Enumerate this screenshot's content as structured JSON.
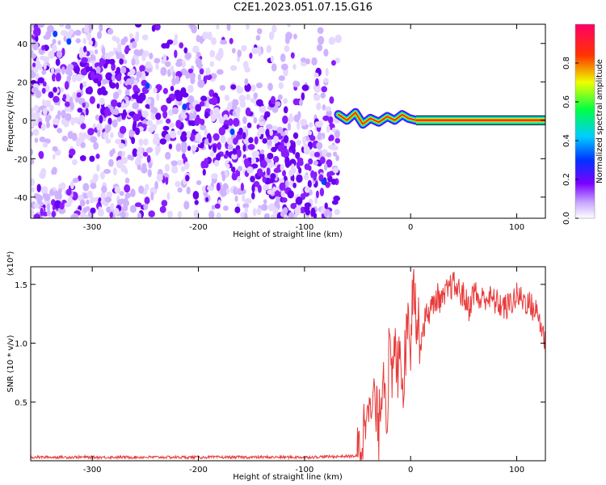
{
  "title": "C2E1.2023.051.07.15.G16",
  "chart_data": [
    {
      "type": "heatmap",
      "xlabel": "Height of straight line (km)",
      "ylabel": "Frequency (Hz)",
      "xlim": [
        -358,
        127
      ],
      "ylim": [
        -51,
        50
      ],
      "xticks": [
        -300,
        -200,
        -100,
        0,
        100
      ],
      "xtick_labels": [
        "-300",
        "-200",
        "-100",
        "0",
        "100"
      ],
      "yticks": [
        -40,
        -20,
        0,
        20,
        40
      ],
      "ytick_labels": [
        "-40",
        "-20",
        "0",
        "20",
        "40"
      ],
      "grid": false,
      "colorbar": {
        "label": "Normalized spectral amplitude",
        "range": [
          0,
          1
        ],
        "ticks": [
          0.0,
          0.2,
          0.4,
          0.6,
          0.8
        ],
        "tick_labels": [
          "0.0",
          "0.2",
          "0.4",
          "0.6",
          "0.8"
        ],
        "colormap": "rainbow (white-violet-blue-cyan-green-yellow-red-magenta)"
      },
      "features": {
        "noise_region_x": [
          -358,
          -68
        ],
        "tone_ridge": {
          "x": [
            -68,
            -60,
            -52,
            -45,
            -38,
            -30,
            -22,
            -15,
            -8,
            -2,
            5,
            20,
            127
          ],
          "y": [
            3,
            0,
            4,
            -2,
            1,
            -1,
            2,
            0,
            3,
            1,
            0,
            0,
            0
          ],
          "peak_amplitude": 1.0
        }
      }
    },
    {
      "type": "line",
      "xlabel": "Height of straight line (km)",
      "ylabel": "SNR (10 * v/v)",
      "multiplier_label": "(x10⁴)",
      "xlim": [
        -358,
        127
      ],
      "ylim": [
        0,
        1.65
      ],
      "xticks": [
        -300,
        -200,
        -100,
        0,
        100
      ],
      "xtick_labels": [
        "-300",
        "-200",
        "-100",
        "0",
        "100"
      ],
      "yticks": [
        0.5,
        1.0,
        1.5
      ],
      "ytick_labels": [
        "0.5",
        "1.0",
        "1.5"
      ],
      "grid": false,
      "series": [
        {
          "color": "#e83a3a",
          "x": [
            -358,
            -300,
            -200,
            -100,
            -50,
            -45,
            -42,
            -40,
            -38,
            -35,
            -30,
            -28,
            -25,
            -22,
            -20,
            -18,
            -15,
            -12,
            -10,
            -8,
            -5,
            -2,
            0,
            3,
            5,
            8,
            10,
            15,
            20,
            25,
            30,
            35,
            40,
            45,
            50,
            55,
            60,
            65,
            70,
            80,
            90,
            100,
            110,
            120,
            127
          ],
          "y": [
            0.03,
            0.03,
            0.03,
            0.03,
            0.04,
            0.2,
            0.45,
            0.7,
            0.3,
            0.55,
            0.25,
            0.6,
            0.8,
            0.35,
            1.05,
            0.6,
            0.95,
            0.75,
            1.2,
            0.6,
            0.9,
            1.35,
            1.0,
            1.7,
            1.2,
            1.1,
            1.05,
            1.25,
            1.3,
            1.4,
            1.35,
            1.45,
            1.5,
            1.45,
            1.4,
            1.3,
            1.45,
            1.35,
            1.4,
            1.35,
            1.3,
            1.4,
            1.35,
            1.25,
            1.0
          ]
        }
      ]
    }
  ]
}
